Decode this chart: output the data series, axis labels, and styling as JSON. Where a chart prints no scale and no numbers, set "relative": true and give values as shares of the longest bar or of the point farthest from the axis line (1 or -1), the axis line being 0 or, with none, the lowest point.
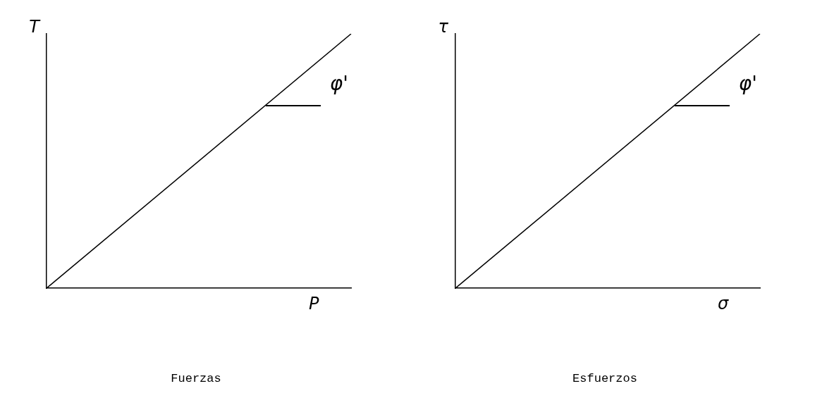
{
  "chart_data": [
    {
      "type": "line",
      "title": "Fuerzas",
      "xlabel": "P",
      "ylabel": "T",
      "categories": [
        null,
        null
      ],
      "relative": true,
      "marker": "none",
      "grid": false,
      "legend": false,
      "annotations": [
        "φ'"
      ],
      "series": [
        {
          "color": "#000000",
          "values": [
            0,
            1
          ]
        }
      ]
    },
    {
      "type": "line",
      "title": "Esfuerzos",
      "xlabel": "σ",
      "ylabel": "τ",
      "categories": [
        null,
        null
      ],
      "relative": true,
      "marker": "none",
      "grid": false,
      "legend": false,
      "annotations": [
        "φ'"
      ],
      "series": [
        {
          "color": "#000000",
          "values": [
            0,
            1
          ]
        }
      ]
    }
  ]
}
